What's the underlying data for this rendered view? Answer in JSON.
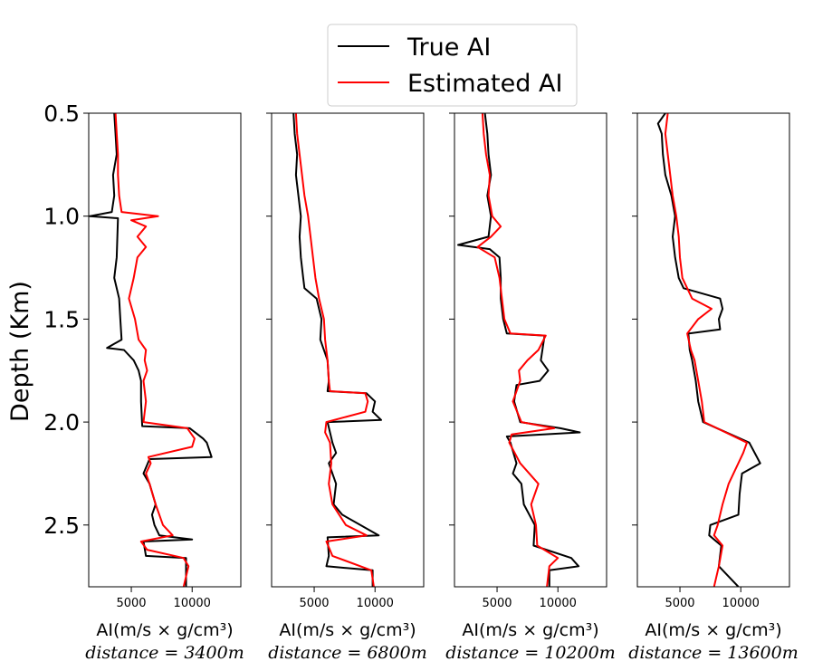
{
  "chart_data": {
    "type": "line",
    "ylabel": "Depth (Km)",
    "ylim": [
      0.5,
      2.8
    ],
    "y_inverted": true,
    "yticks": [
      "0.5",
      "1.0",
      "1.5",
      "2.0",
      "2.5"
    ],
    "xticks": [
      "5000",
      "10000"
    ],
    "xlim": [
      1500,
      14000
    ],
    "grid": false,
    "legend": {
      "placement": "top-center",
      "entries": [
        {
          "label": "True AI",
          "color": "#000000"
        },
        {
          "label": "Estimated AI",
          "color": "#ff0000"
        }
      ]
    },
    "panels": [
      {
        "xlabel_unit": "AI(m/s × g/cm³)",
        "xlabel_distance": "distance = 3400m",
        "true_ai": [
          [
            0.5,
            3600
          ],
          [
            0.6,
            3700
          ],
          [
            0.7,
            3800
          ],
          [
            0.8,
            3500
          ],
          [
            0.9,
            3600
          ],
          [
            0.98,
            3400
          ],
          [
            1.0,
            1600
          ],
          [
            1.01,
            3900
          ],
          [
            1.2,
            3800
          ],
          [
            1.3,
            3600
          ],
          [
            1.4,
            4000
          ],
          [
            1.5,
            4100
          ],
          [
            1.6,
            4200
          ],
          [
            1.64,
            3000
          ],
          [
            1.65,
            4400
          ],
          [
            1.7,
            5200
          ],
          [
            1.75,
            5600
          ],
          [
            1.8,
            5800
          ],
          [
            1.9,
            5800
          ],
          [
            2.02,
            5900
          ],
          [
            2.03,
            9800
          ],
          [
            2.08,
            10900
          ],
          [
            2.1,
            11200
          ],
          [
            2.17,
            11600
          ],
          [
            2.18,
            6500
          ],
          [
            2.25,
            6000
          ],
          [
            2.3,
            6500
          ],
          [
            2.4,
            7000
          ],
          [
            2.45,
            6700
          ],
          [
            2.5,
            6900
          ],
          [
            2.55,
            7300
          ],
          [
            2.57,
            10000
          ],
          [
            2.58,
            6000
          ],
          [
            2.65,
            6200
          ],
          [
            2.66,
            9500
          ],
          [
            2.8,
            9500
          ]
        ],
        "estimated_ai": [
          [
            0.5,
            3700
          ],
          [
            0.6,
            3800
          ],
          [
            0.7,
            3900
          ],
          [
            0.8,
            3900
          ],
          [
            0.9,
            4000
          ],
          [
            0.98,
            4200
          ],
          [
            1.0,
            7200
          ],
          [
            1.02,
            5000
          ],
          [
            1.05,
            6200
          ],
          [
            1.1,
            5500
          ],
          [
            1.15,
            6200
          ],
          [
            1.2,
            5500
          ],
          [
            1.3,
            5200
          ],
          [
            1.4,
            4800
          ],
          [
            1.5,
            5300
          ],
          [
            1.6,
            5600
          ],
          [
            1.65,
            6200
          ],
          [
            1.7,
            6100
          ],
          [
            1.75,
            6300
          ],
          [
            1.8,
            6000
          ],
          [
            1.9,
            6200
          ],
          [
            2.0,
            6000
          ],
          [
            2.03,
            9600
          ],
          [
            2.08,
            10200
          ],
          [
            2.12,
            10000
          ],
          [
            2.17,
            6400
          ],
          [
            2.2,
            6600
          ],
          [
            2.25,
            6200
          ],
          [
            2.3,
            6500
          ],
          [
            2.4,
            7000
          ],
          [
            2.5,
            7600
          ],
          [
            2.55,
            8400
          ],
          [
            2.58,
            5800
          ],
          [
            2.62,
            6300
          ],
          [
            2.66,
            9300
          ],
          [
            2.7,
            9700
          ],
          [
            2.8,
            9300
          ]
        ]
      },
      {
        "xlabel_unit": "AI(m/s × g/cm³)",
        "xlabel_distance": "distance = 6800m",
        "true_ai": [
          [
            0.5,
            3300
          ],
          [
            0.6,
            3400
          ],
          [
            0.7,
            3600
          ],
          [
            0.8,
            3500
          ],
          [
            0.9,
            3700
          ],
          [
            1.0,
            3900
          ],
          [
            1.1,
            3800
          ],
          [
            1.2,
            3900
          ],
          [
            1.3,
            4100
          ],
          [
            1.35,
            4200
          ],
          [
            1.4,
            5200
          ],
          [
            1.5,
            5600
          ],
          [
            1.6,
            5500
          ],
          [
            1.7,
            6100
          ],
          [
            1.8,
            6200
          ],
          [
            1.85,
            6100
          ],
          [
            1.86,
            9300
          ],
          [
            1.9,
            10000
          ],
          [
            1.95,
            9800
          ],
          [
            1.99,
            10500
          ],
          [
            2.0,
            6100
          ],
          [
            2.05,
            6300
          ],
          [
            2.1,
            6500
          ],
          [
            2.15,
            6800
          ],
          [
            2.2,
            6200
          ],
          [
            2.3,
            6800
          ],
          [
            2.4,
            6600
          ],
          [
            2.45,
            7300
          ],
          [
            2.55,
            10300
          ],
          [
            2.56,
            6100
          ],
          [
            2.65,
            6200
          ],
          [
            2.7,
            6000
          ],
          [
            2.72,
            9800
          ],
          [
            2.8,
            9800
          ]
        ],
        "estimated_ai": [
          [
            0.5,
            3500
          ],
          [
            0.6,
            3600
          ],
          [
            0.7,
            3800
          ],
          [
            0.8,
            4000
          ],
          [
            0.9,
            4200
          ],
          [
            1.0,
            4500
          ],
          [
            1.1,
            4700
          ],
          [
            1.2,
            4900
          ],
          [
            1.3,
            5100
          ],
          [
            1.4,
            5400
          ],
          [
            1.5,
            5800
          ],
          [
            1.6,
            5900
          ],
          [
            1.7,
            6100
          ],
          [
            1.8,
            6200
          ],
          [
            1.85,
            6300
          ],
          [
            1.86,
            9200
          ],
          [
            1.9,
            9400
          ],
          [
            1.95,
            9200
          ],
          [
            2.0,
            6000
          ],
          [
            2.05,
            5900
          ],
          [
            2.1,
            6300
          ],
          [
            2.2,
            6400
          ],
          [
            2.3,
            6200
          ],
          [
            2.4,
            6500
          ],
          [
            2.5,
            7600
          ],
          [
            2.55,
            9300
          ],
          [
            2.58,
            6000
          ],
          [
            2.65,
            6500
          ],
          [
            2.72,
            9700
          ],
          [
            2.8,
            9900
          ]
        ]
      },
      {
        "xlabel_unit": "AI(m/s × g/cm³)",
        "xlabel_distance": "distance = 10200m",
        "true_ai": [
          [
            0.5,
            4000
          ],
          [
            0.6,
            4200
          ],
          [
            0.7,
            4300
          ],
          [
            0.8,
            4500
          ],
          [
            0.9,
            4200
          ],
          [
            1.0,
            4500
          ],
          [
            1.1,
            4300
          ],
          [
            1.14,
            1800
          ],
          [
            1.16,
            4400
          ],
          [
            1.2,
            5200
          ],
          [
            1.3,
            5300
          ],
          [
            1.4,
            5300
          ],
          [
            1.5,
            5500
          ],
          [
            1.57,
            5800
          ],
          [
            1.58,
            8900
          ],
          [
            1.7,
            8600
          ],
          [
            1.75,
            9200
          ],
          [
            1.8,
            8500
          ],
          [
            1.82,
            6600
          ],
          [
            1.9,
            6400
          ],
          [
            2.0,
            6900
          ],
          [
            2.03,
            10200
          ],
          [
            2.05,
            11800
          ],
          [
            2.07,
            5800
          ],
          [
            2.1,
            6100
          ],
          [
            2.2,
            6600
          ],
          [
            2.25,
            6300
          ],
          [
            2.3,
            7000
          ],
          [
            2.4,
            7200
          ],
          [
            2.5,
            8100
          ],
          [
            2.6,
            8000
          ],
          [
            2.66,
            11100
          ],
          [
            2.7,
            11700
          ],
          [
            2.72,
            9300
          ],
          [
            2.8,
            9300
          ]
        ],
        "estimated_ai": [
          [
            0.5,
            3800
          ],
          [
            0.6,
            3900
          ],
          [
            0.7,
            4100
          ],
          [
            0.8,
            4400
          ],
          [
            0.9,
            4300
          ],
          [
            1.0,
            4600
          ],
          [
            1.05,
            5300
          ],
          [
            1.1,
            4500
          ],
          [
            1.15,
            3400
          ],
          [
            1.2,
            4800
          ],
          [
            1.3,
            5200
          ],
          [
            1.4,
            5400
          ],
          [
            1.5,
            5600
          ],
          [
            1.57,
            6100
          ],
          [
            1.58,
            9000
          ],
          [
            1.65,
            8400
          ],
          [
            1.7,
            7500
          ],
          [
            1.75,
            6800
          ],
          [
            1.8,
            6900
          ],
          [
            1.9,
            6300
          ],
          [
            2.0,
            7000
          ],
          [
            2.03,
            9700
          ],
          [
            2.06,
            6200
          ],
          [
            2.1,
            6000
          ],
          [
            2.2,
            6900
          ],
          [
            2.3,
            8400
          ],
          [
            2.4,
            7800
          ],
          [
            2.5,
            8200
          ],
          [
            2.6,
            8300
          ],
          [
            2.66,
            10000
          ],
          [
            2.7,
            9300
          ],
          [
            2.8,
            9100
          ]
        ]
      },
      {
        "xlabel_unit": "AI(m/s × g/cm³)",
        "xlabel_distance": "distance = 13600m",
        "true_ai": [
          [
            0.5,
            3800
          ],
          [
            0.55,
            3200
          ],
          [
            0.6,
            3500
          ],
          [
            0.7,
            3600
          ],
          [
            0.8,
            3800
          ],
          [
            0.9,
            4300
          ],
          [
            1.0,
            4600
          ],
          [
            1.1,
            4400
          ],
          [
            1.2,
            4600
          ],
          [
            1.3,
            4900
          ],
          [
            1.35,
            5300
          ],
          [
            1.4,
            8300
          ],
          [
            1.45,
            8500
          ],
          [
            1.5,
            8200
          ],
          [
            1.55,
            8300
          ],
          [
            1.57,
            5700
          ],
          [
            1.65,
            5800
          ],
          [
            1.7,
            6000
          ],
          [
            1.8,
            6300
          ],
          [
            1.9,
            6500
          ],
          [
            2.0,
            6900
          ],
          [
            2.1,
            10700
          ],
          [
            2.2,
            11600
          ],
          [
            2.25,
            10100
          ],
          [
            2.3,
            10000
          ],
          [
            2.35,
            9900
          ],
          [
            2.45,
            9800
          ],
          [
            2.5,
            7500
          ],
          [
            2.55,
            7400
          ],
          [
            2.6,
            8400
          ],
          [
            2.7,
            8200
          ],
          [
            2.8,
            9800
          ]
        ],
        "estimated_ai": [
          [
            0.5,
            4000
          ],
          [
            0.6,
            3800
          ],
          [
            0.7,
            4000
          ],
          [
            0.8,
            4200
          ],
          [
            0.9,
            4400
          ],
          [
            1.0,
            4700
          ],
          [
            1.1,
            4900
          ],
          [
            1.2,
            5000
          ],
          [
            1.3,
            5200
          ],
          [
            1.4,
            6000
          ],
          [
            1.45,
            7600
          ],
          [
            1.5,
            6500
          ],
          [
            1.57,
            5600
          ],
          [
            1.65,
            5900
          ],
          [
            1.7,
            6200
          ],
          [
            1.8,
            6500
          ],
          [
            1.9,
            6800
          ],
          [
            2.0,
            7000
          ],
          [
            2.1,
            10500
          ],
          [
            2.15,
            10200
          ],
          [
            2.3,
            9000
          ],
          [
            2.4,
            8500
          ],
          [
            2.5,
            8100
          ],
          [
            2.55,
            7800
          ],
          [
            2.6,
            8500
          ],
          [
            2.7,
            8200
          ],
          [
            2.8,
            7800
          ]
        ]
      }
    ]
  }
}
